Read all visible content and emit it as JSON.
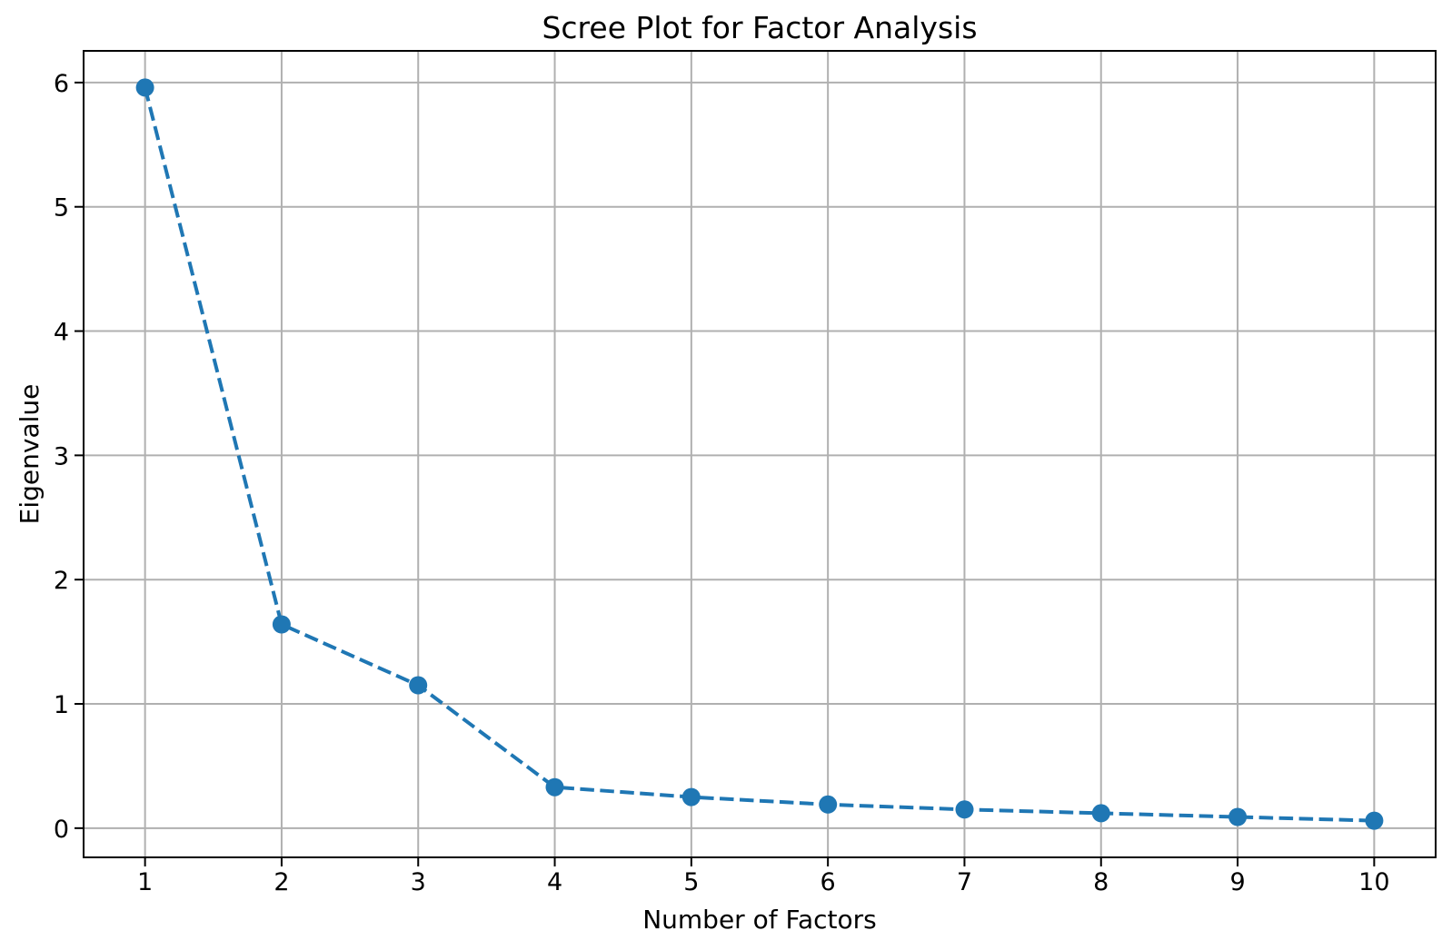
{
  "chart_data": {
    "type": "line",
    "title": "Scree Plot for Factor Analysis",
    "xlabel": "Number of Factors",
    "ylabel": "Eigenvalue",
    "x": [
      1,
      2,
      3,
      4,
      5,
      6,
      7,
      8,
      9,
      10
    ],
    "series": [
      {
        "name": "Eigenvalue",
        "values": [
          5.96,
          1.64,
          1.15,
          0.33,
          0.25,
          0.19,
          0.15,
          0.12,
          0.09,
          0.06
        ]
      }
    ],
    "xticks": [
      1,
      2,
      3,
      4,
      5,
      6,
      7,
      8,
      9,
      10
    ],
    "yticks": [
      0,
      1,
      2,
      3,
      4,
      5,
      6
    ],
    "xlim": [
      0.55,
      10.45
    ],
    "ylim": [
      -0.235,
      6.255
    ],
    "grid": true,
    "legend": false,
    "line_style": "dashed",
    "marker": "circle",
    "colors": {
      "line": "#1f77b4",
      "grid": "#b0b0b0",
      "spine": "#000000",
      "text": "#000000",
      "background": "#ffffff"
    }
  }
}
